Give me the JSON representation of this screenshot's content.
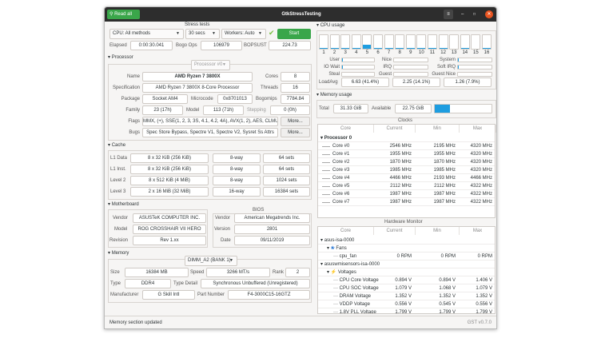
{
  "window": {
    "title": "GtkStressTesting",
    "read_all": "Read all",
    "menu_icon": "hamburger-icon",
    "status": "Memory section updated",
    "version": "GST v0.7.0"
  },
  "stress": {
    "title": "Stress tests",
    "method": "CPU: All methods",
    "duration": "30 secs",
    "workers": "Workers: Auto",
    "start": "Start",
    "elapsed_label": "Elapsed",
    "elapsed": "0:00:30.041",
    "bogo_label": "Bogo Ops",
    "bogo": "106979",
    "bopsust_label": "BOPSUST",
    "bopsust": "224.73"
  },
  "processor": {
    "title": "Processor",
    "selector": "Processor #0",
    "name_label": "Name",
    "name": "AMD Ryzen 7 3800X",
    "cores_label": "Cores",
    "cores": "8",
    "spec_label": "Specification",
    "spec": "AMD Ryzen 7 3800X 8-Core Processor",
    "threads_label": "Threads",
    "threads": "16",
    "package_label": "Package",
    "package": "Socket AM4",
    "microcode_label": "Microcode",
    "microcode": "0x8701013",
    "bogomips_label": "Bogomips",
    "bogomips": "7784.84",
    "family_label": "Family",
    "family": "23 (17h)",
    "model_label": "Model",
    "model": "113 (71h)",
    "stepping_label": "Stepping",
    "stepping": "0 (0h)",
    "flags_label": "Flags",
    "flags": "MMX, (+), SSE(1, 2, 3, 3S, 4.1, 4.2, 4A), AVX(1, 2), AES, CLMUI",
    "bugs_label": "Bugs",
    "bugs": "Spec Store Bypass, Spectre V1, Spectre V2, Sysret Ss Attrs",
    "more": "More..."
  },
  "cache": {
    "title": "Cache",
    "rows": [
      {
        "label": "L1 Data",
        "size": "8 x 32 KiB (256 KiB)",
        "ways": "8-way",
        "sets": "64 sets"
      },
      {
        "label": "L1 Inst.",
        "size": "8 x 32 KiB (256 KiB)",
        "ways": "8-way",
        "sets": "64 sets"
      },
      {
        "label": "Level 2",
        "size": "8 x 512 KiB (4 MiB)",
        "ways": "8-way",
        "sets": "1024 sets"
      },
      {
        "label": "Level 3",
        "size": "2 x 16 MiB (32 MiB)",
        "ways": "16-way",
        "sets": "16384 sets"
      }
    ]
  },
  "motherboard": {
    "title": "Motherboard",
    "vendor_label": "Vendor",
    "vendor": "ASUSTeK COMPUTER INC.",
    "model_label": "Model",
    "model": "ROG CROSSHAIR VII HERO",
    "revision_label": "Revision",
    "revision": "Rev 1.xx",
    "bios": {
      "title": "BIOS",
      "vendor_label": "Vendor",
      "vendor": "American Megatrends Inc.",
      "version_label": "Version",
      "version": "2801",
      "date_label": "Date",
      "date": "09/11/2019"
    }
  },
  "memory": {
    "title": "Memory",
    "selector": "DIMM_A2 (BANK 1)",
    "size_label": "Size",
    "size": "16384 MB",
    "speed_label": "Speed",
    "speed": "3266 MT/s",
    "rank_label": "Rank",
    "rank": "2",
    "type_label": "Type",
    "type": "DDR4",
    "type_detail_label": "Type Detail",
    "type_detail": "Synchronous Unbuffered (Unregistered)",
    "manufacturer_label": "Manufacturer",
    "manufacturer": "G Skill Intl",
    "part_label": "Part Number",
    "part": "F4-3000C15-16GTZ"
  },
  "cpu_usage": {
    "title": "CPU usage",
    "accent": "#1e9de0",
    "cores": [
      {
        "n": "1",
        "pct": 3
      },
      {
        "n": "2",
        "pct": 3
      },
      {
        "n": "3",
        "pct": 3
      },
      {
        "n": "4",
        "pct": 3
      },
      {
        "n": "5",
        "pct": 30
      },
      {
        "n": "6",
        "pct": 3
      },
      {
        "n": "7",
        "pct": 3
      },
      {
        "n": "8",
        "pct": 3
      },
      {
        "n": "9",
        "pct": 3
      },
      {
        "n": "10",
        "pct": 3
      },
      {
        "n": "11",
        "pct": 3
      },
      {
        "n": "12",
        "pct": 3
      },
      {
        "n": "13",
        "pct": 0
      },
      {
        "n": "14",
        "pct": 3
      },
      {
        "n": "15",
        "pct": 0
      },
      {
        "n": "16",
        "pct": 3
      }
    ],
    "stats": [
      {
        "label": "User",
        "pct": 2
      },
      {
        "label": "Nice",
        "pct": 0
      },
      {
        "label": "System",
        "pct": 2
      },
      {
        "label": "IO Wait",
        "pct": 2
      },
      {
        "label": "IRQ",
        "pct": 0
      },
      {
        "label": "Soft IRQ",
        "pct": 2
      },
      {
        "label": "Steal",
        "pct": 0
      },
      {
        "label": "Guest",
        "pct": 0
      },
      {
        "label": "Guest Nice",
        "pct": 0
      }
    ],
    "loadavg_label": "LoadAvg",
    "loadavg": [
      {
        "text": "6.63 (41.4%)",
        "pct": 41.4
      },
      {
        "text": "2.25 (14.1%)",
        "pct": 14.1
      },
      {
        "text": "1.26 (7.9%)",
        "pct": 7.9
      }
    ]
  },
  "memory_usage": {
    "title": "Memory usage",
    "total_label": "Total",
    "total": "31.33 GiB",
    "available_label": "Available",
    "available": "22.75 GiB",
    "used_pct": 27.4
  },
  "clocks": {
    "title": "Clocks",
    "columns": [
      "Core",
      "Current",
      "Min",
      "Max"
    ],
    "group": "Processor 0",
    "rows": [
      [
        "Core #0",
        "2546 MHz",
        "2195 MHz",
        "4320 MHz"
      ],
      [
        "Core #1",
        "1955 MHz",
        "1955 MHz",
        "4320 MHz"
      ],
      [
        "Core #2",
        "1870 MHz",
        "1870 MHz",
        "4320 MHz"
      ],
      [
        "Core #3",
        "1985 MHz",
        "1985 MHz",
        "4320 MHz"
      ],
      [
        "Core #4",
        "4466 MHz",
        "2193 MHz",
        "4466 MHz"
      ],
      [
        "Core #5",
        "2112 MHz",
        "2112 MHz",
        "4322 MHz"
      ],
      [
        "Core #6",
        "1987 MHz",
        "1987 MHz",
        "4322 MHz"
      ],
      [
        "Core #7",
        "1987 MHz",
        "1987 MHz",
        "4322 MHz"
      ]
    ]
  },
  "hwmon": {
    "title": "Hardware Monitor",
    "columns": [
      "Core",
      "Current",
      "Min",
      "Max"
    ],
    "rows": [
      {
        "level": 0,
        "name": "asus-isa-0000",
        "expander": true
      },
      {
        "level": 1,
        "name": "Fans",
        "expander": true,
        "icon": "fan-icon"
      },
      {
        "level": 2,
        "name": "cpu_fan",
        "cur": "0 RPM",
        "min": "0 RPM",
        "max": "0 RPM"
      },
      {
        "level": 0,
        "name": "asuswmisensors-isa-0000",
        "expander": true
      },
      {
        "level": 1,
        "name": "Voltages",
        "expander": true,
        "icon": "lightning-icon"
      },
      {
        "level": 2,
        "name": "CPU Core Voltage",
        "cur": "0.894 V",
        "min": "0.894 V",
        "max": "1.406 V"
      },
      {
        "level": 2,
        "name": "CPU SOC Voltage",
        "cur": "1.079 V",
        "min": "1.068 V",
        "max": "1.079 V"
      },
      {
        "level": 2,
        "name": "DRAM Voltage",
        "cur": "1.352 V",
        "min": "1.352 V",
        "max": "1.352 V"
      },
      {
        "level": 2,
        "name": "VDDP Voltage",
        "cur": "0.556 V",
        "min": "0.545 V",
        "max": "0.556 V"
      },
      {
        "level": 2,
        "name": "1.8V PLL Voltage",
        "cur": "1.799 V",
        "min": "1.799 V",
        "max": "1.799 V"
      }
    ]
  }
}
